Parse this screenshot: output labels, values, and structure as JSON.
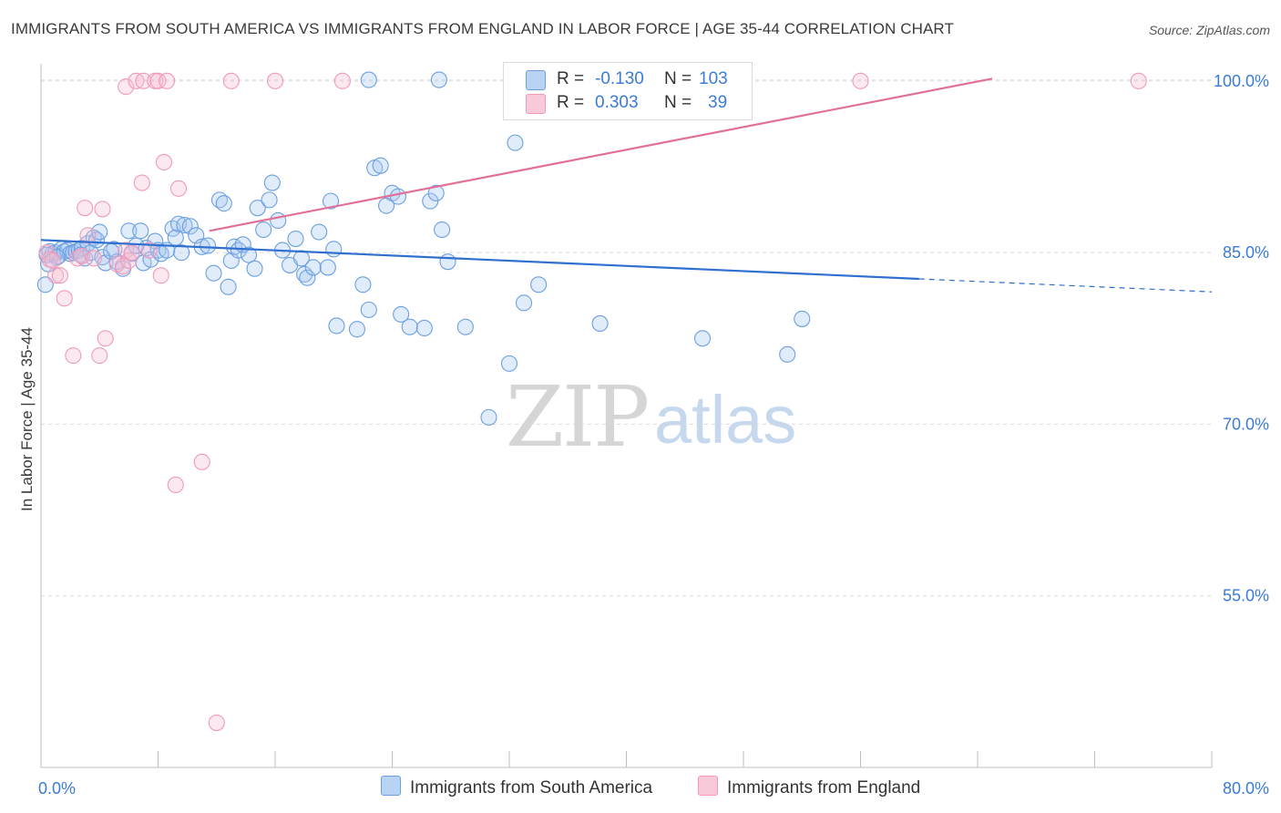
{
  "title": "IMMIGRANTS FROM SOUTH AMERICA VS IMMIGRANTS FROM ENGLAND IN LABOR FORCE | AGE 35-44 CORRELATION CHART",
  "source": "Source: ZipAtlas.com",
  "watermark": {
    "zip": "ZIP",
    "atlas": "atlas"
  },
  "colors": {
    "blue": "#6a9fe0",
    "blue_line": "#2e6fd0",
    "pink": "#f09ab8",
    "pink_line": "#e07098",
    "tick_text": "#3a7bd5"
  },
  "legend": {
    "r_label": "R =",
    "n_label": "N =",
    "rows": [
      {
        "r": "-0.130",
        "n": "103"
      },
      {
        "r": "0.303",
        "n": "39"
      }
    ]
  },
  "bottom_legend": {
    "blue": "Immigrants from South America",
    "pink": "Immigrants from England"
  },
  "chart_data": {
    "type": "scatter",
    "title": "IMMIGRANTS FROM SOUTH AMERICA VS IMMIGRANTS FROM ENGLAND IN LABOR FORCE | AGE 35-44 CORRELATION CHART",
    "xlabel": "",
    "ylabel": "In Labor Force | Age 35-44",
    "xlim": [
      0,
      80
    ],
    "ylim": [
      40,
      101.5
    ],
    "x_tick_labels": [
      "0.0%",
      "80.0%"
    ],
    "y_ticks": [
      {
        "value": 100,
        "label": "100.0%"
      },
      {
        "value": 85,
        "label": "85.0%"
      },
      {
        "value": 70,
        "label": "70.0%"
      },
      {
        "value": 55,
        "label": "55.0%"
      }
    ],
    "grid": "horizontal dashed",
    "series": [
      {
        "name": "Immigrants from South America",
        "color": "#6a9fe0",
        "trend": {
          "x": [
            0,
            60
          ],
          "y": [
            86.1,
            82.7
          ],
          "extend_dashed_to": 80
        },
        "points": [
          [
            0.3,
            82.2
          ],
          [
            0.5,
            84.0
          ],
          [
            0.6,
            85.1
          ],
          [
            0.8,
            84.9
          ],
          [
            1.0,
            85.0
          ],
          [
            1.2,
            84.7
          ],
          [
            1.4,
            85.3
          ],
          [
            1.6,
            85.1
          ],
          [
            1.8,
            85.2
          ],
          [
            2.0,
            84.9
          ],
          [
            2.2,
            85.0
          ],
          [
            2.4,
            85.1
          ],
          [
            2.6,
            85.2
          ],
          [
            2.8,
            85.4
          ],
          [
            3.0,
            84.5
          ],
          [
            3.2,
            85.8
          ],
          [
            3.4,
            85.0
          ],
          [
            3.6,
            86.3
          ],
          [
            3.8,
            86.1
          ],
          [
            4.0,
            86.8
          ],
          [
            4.2,
            84.6
          ],
          [
            4.4,
            84.1
          ],
          [
            5.0,
            85.3
          ],
          [
            5.2,
            84.2
          ],
          [
            5.6,
            83.6
          ],
          [
            6.0,
            86.9
          ],
          [
            6.2,
            84.9
          ],
          [
            6.8,
            86.9
          ],
          [
            7.0,
            84.1
          ],
          [
            7.2,
            85.4
          ],
          [
            7.5,
            84.4
          ],
          [
            7.8,
            86.0
          ],
          [
            8.0,
            85.2
          ],
          [
            8.2,
            84.9
          ],
          [
            8.6,
            85.2
          ],
          [
            9.0,
            87.1
          ],
          [
            9.2,
            86.3
          ],
          [
            9.4,
            87.5
          ],
          [
            9.8,
            87.4
          ],
          [
            10.2,
            87.3
          ],
          [
            10.6,
            86.5
          ],
          [
            11.0,
            85.5
          ],
          [
            11.4,
            85.6
          ],
          [
            11.8,
            83.2
          ],
          [
            12.2,
            89.6
          ],
          [
            12.5,
            89.3
          ],
          [
            12.8,
            82.0
          ],
          [
            13.0,
            84.3
          ],
          [
            13.2,
            85.5
          ],
          [
            13.5,
            85.2
          ],
          [
            13.8,
            85.7
          ],
          [
            14.2,
            84.8
          ],
          [
            14.6,
            83.6
          ],
          [
            14.8,
            88.9
          ],
          [
            15.2,
            87.0
          ],
          [
            15.6,
            89.6
          ],
          [
            15.8,
            91.1
          ],
          [
            16.2,
            87.8
          ],
          [
            16.5,
            85.2
          ],
          [
            17.0,
            83.9
          ],
          [
            17.4,
            86.2
          ],
          [
            17.8,
            84.5
          ],
          [
            18.0,
            83.1
          ],
          [
            18.2,
            82.8
          ],
          [
            18.6,
            83.7
          ],
          [
            19.0,
            86.8
          ],
          [
            19.6,
            83.7
          ],
          [
            19.8,
            89.5
          ],
          [
            20.0,
            85.3
          ],
          [
            20.2,
            78.6
          ],
          [
            21.6,
            78.3
          ],
          [
            22.0,
            82.2
          ],
          [
            22.4,
            80.0
          ],
          [
            22.8,
            92.4
          ],
          [
            23.2,
            92.6
          ],
          [
            23.6,
            89.1
          ],
          [
            24.0,
            90.2
          ],
          [
            24.4,
            89.9
          ],
          [
            24.6,
            79.6
          ],
          [
            25.2,
            78.5
          ],
          [
            26.2,
            78.4
          ],
          [
            26.6,
            89.5
          ],
          [
            27.0,
            90.2
          ],
          [
            27.4,
            87.0
          ],
          [
            27.8,
            84.2
          ],
          [
            29.0,
            78.5
          ],
          [
            30.6,
            70.6
          ],
          [
            32.0,
            75.3
          ],
          [
            32.4,
            94.6
          ],
          [
            33.0,
            80.6
          ],
          [
            34.0,
            82.2
          ],
          [
            38.2,
            78.8
          ],
          [
            45.2,
            77.5
          ],
          [
            51.0,
            76.1
          ],
          [
            52.0,
            79.2
          ],
          [
            22.4,
            100.1
          ],
          [
            27.2,
            100.1
          ],
          [
            0.4,
            84.8
          ],
          [
            1.1,
            84.6
          ],
          [
            2.7,
            84.8
          ],
          [
            4.8,
            85.1
          ],
          [
            6.5,
            85.6
          ],
          [
            9.6,
            85.0
          ]
        ]
      },
      {
        "name": "Immigrants from England",
        "color": "#f09ab8",
        "trend": {
          "x": [
            11.5,
            65
          ],
          "y": [
            86.9,
            100.2
          ]
        },
        "points": [
          [
            0.4,
            85.0
          ],
          [
            0.6,
            84.4
          ],
          [
            0.8,
            84.3
          ],
          [
            1.0,
            83.0
          ],
          [
            1.3,
            83.0
          ],
          [
            1.6,
            81.0
          ],
          [
            2.2,
            76.0
          ],
          [
            2.5,
            84.5
          ],
          [
            2.8,
            84.7
          ],
          [
            3.0,
            88.9
          ],
          [
            3.2,
            86.5
          ],
          [
            3.6,
            84.5
          ],
          [
            4.0,
            76.0
          ],
          [
            4.2,
            88.8
          ],
          [
            4.4,
            77.5
          ],
          [
            5.2,
            84.0
          ],
          [
            5.6,
            83.8
          ],
          [
            5.8,
            85.2
          ],
          [
            6.0,
            84.3
          ],
          [
            6.2,
            85.0
          ],
          [
            5.8,
            99.5
          ],
          [
            6.5,
            100.0
          ],
          [
            6.9,
            91.1
          ],
          [
            7.0,
            100.0
          ],
          [
            7.4,
            85.2
          ],
          [
            7.8,
            100.0
          ],
          [
            8.0,
            100.0
          ],
          [
            8.2,
            83.0
          ],
          [
            8.4,
            92.9
          ],
          [
            8.6,
            100.0
          ],
          [
            9.2,
            64.7
          ],
          [
            9.4,
            90.6
          ],
          [
            11.0,
            66.7
          ],
          [
            12.0,
            43.9
          ],
          [
            13.0,
            100.0
          ],
          [
            16.0,
            100.0
          ],
          [
            20.6,
            100.0
          ],
          [
            56.0,
            100.0
          ],
          [
            75.0,
            100.0
          ]
        ]
      }
    ]
  }
}
